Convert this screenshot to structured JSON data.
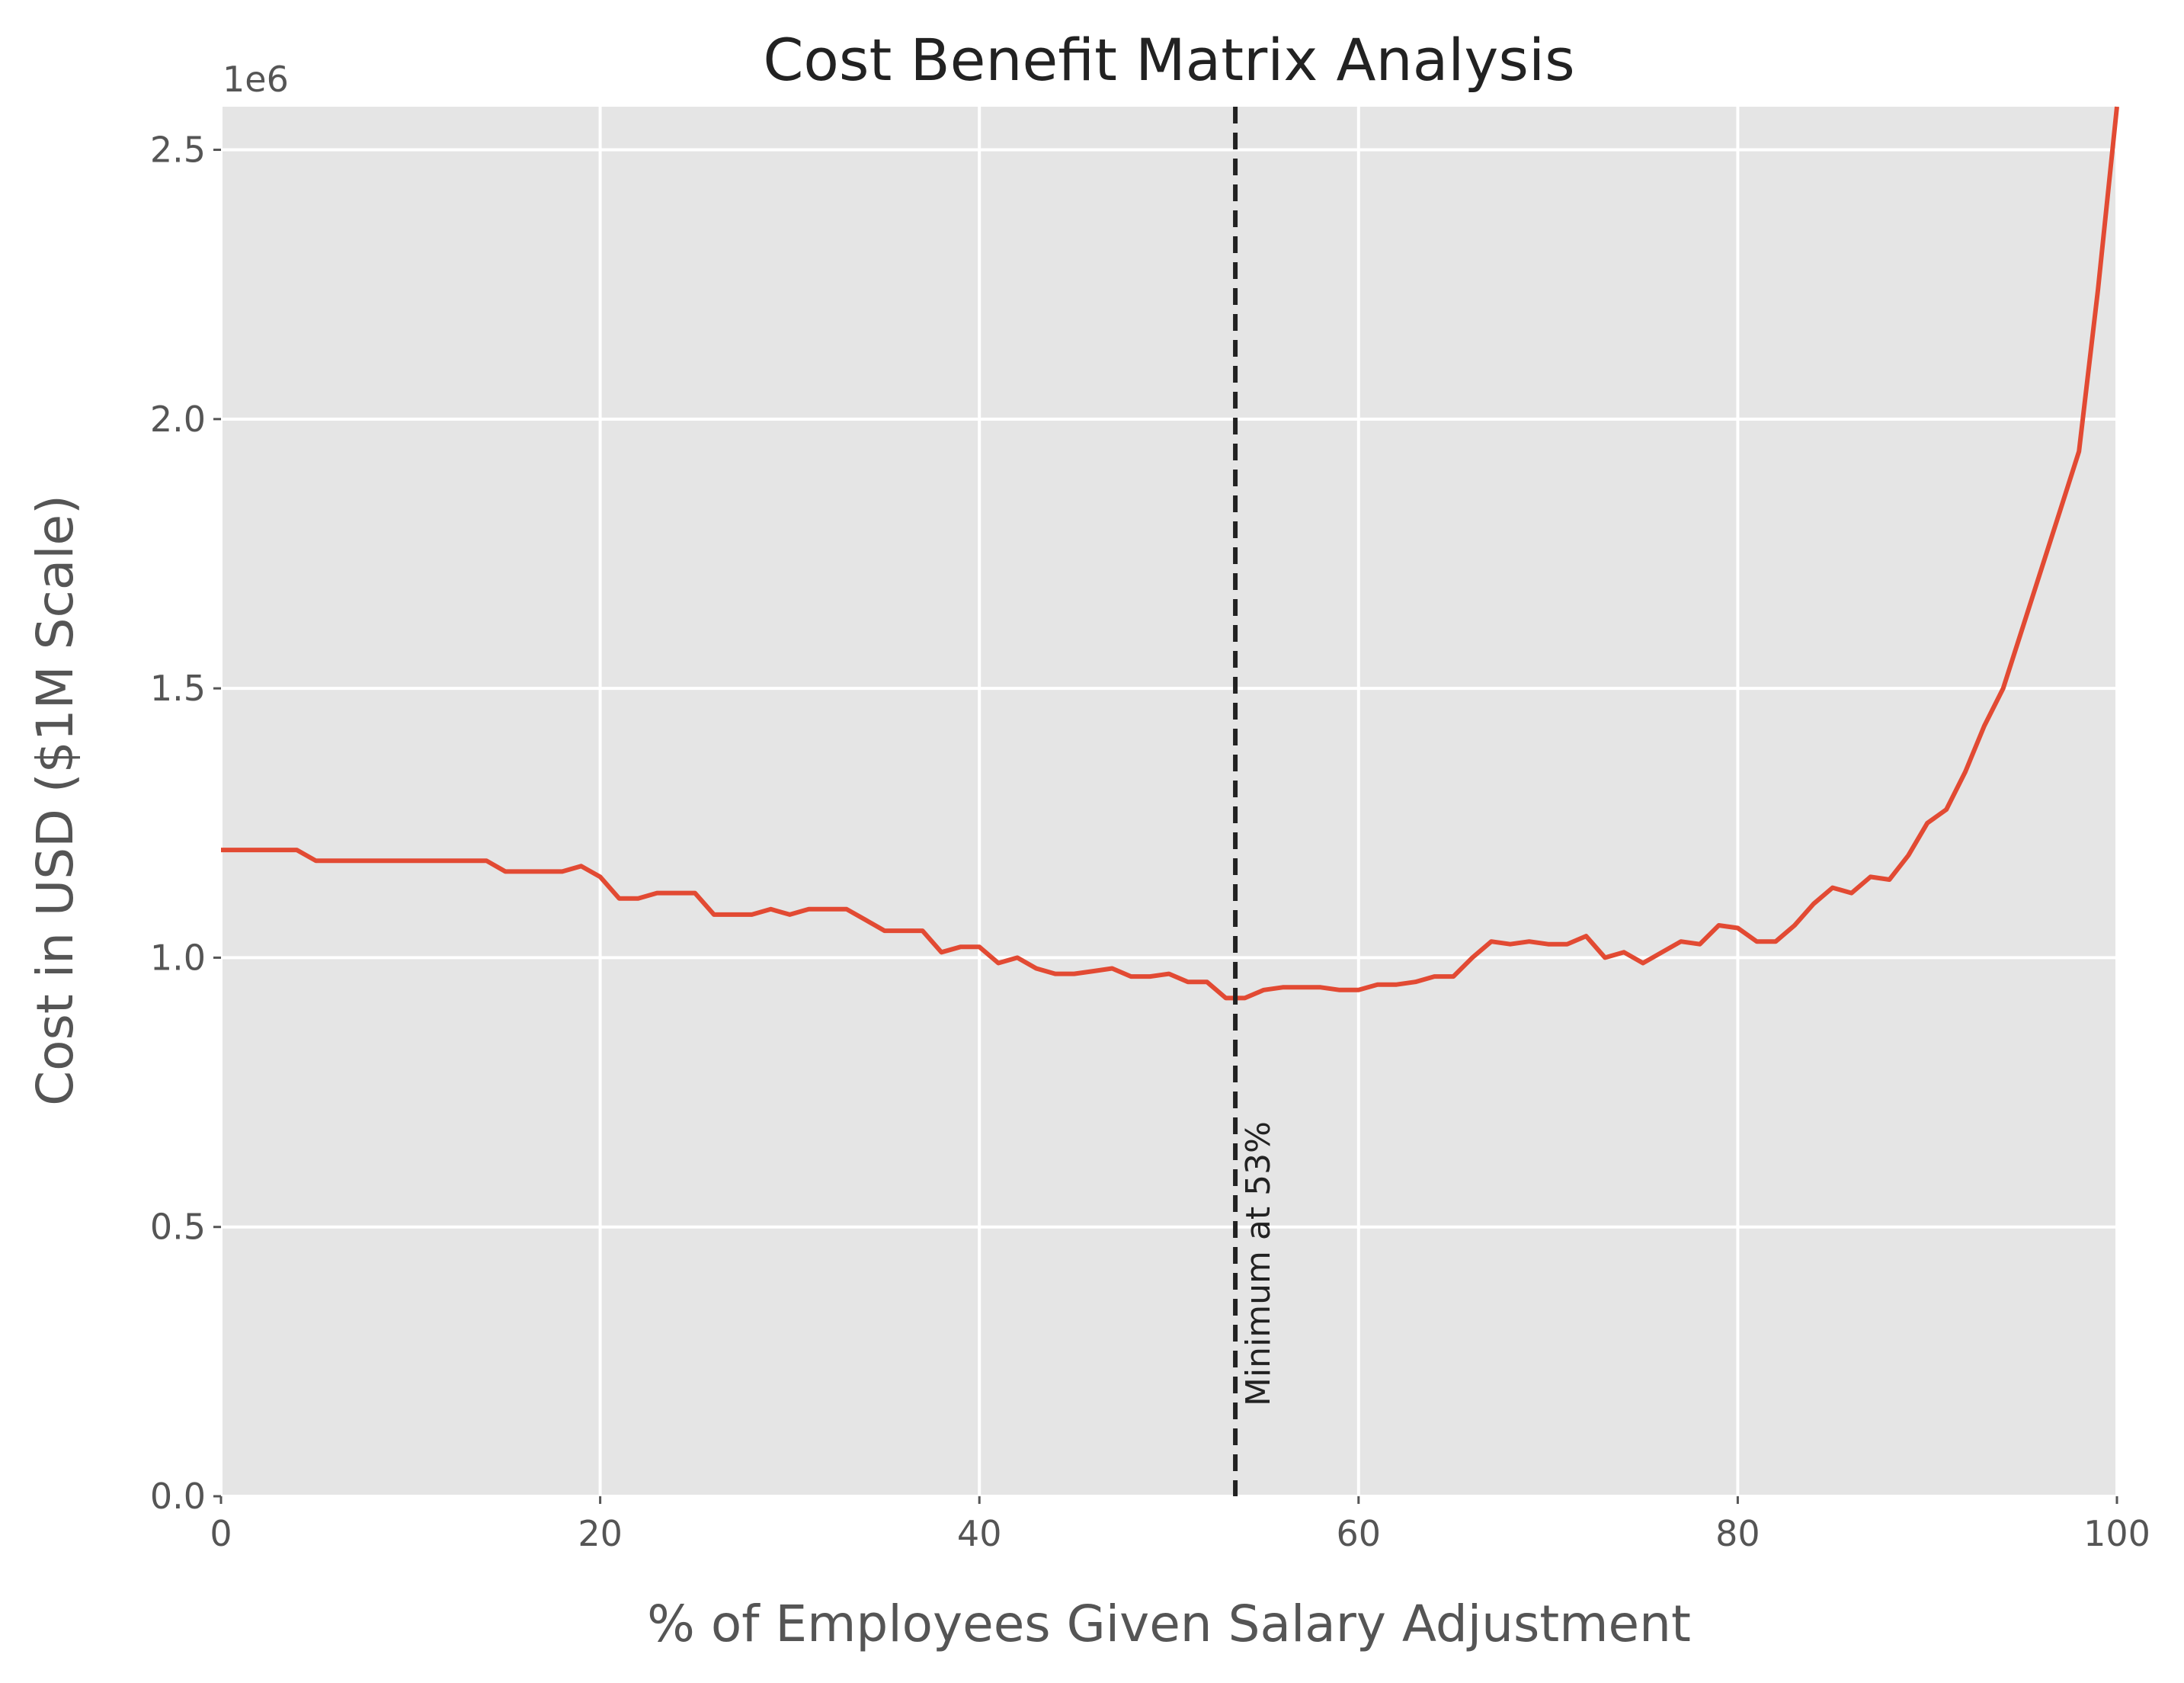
{
  "chart_data": {
    "type": "line",
    "title": "Cost Benefit Matrix Analysis",
    "xlabel": "% of Employees Given Salary Adjustment",
    "ylabel": "Cost in USD ($1M Scale)",
    "y_offset_label": "1e6",
    "xlim": [
      0,
      100
    ],
    "ylim": [
      0,
      2580000
    ],
    "x_ticks": [
      0,
      20,
      40,
      60,
      80,
      100
    ],
    "x_tick_labels": [
      "0",
      "20",
      "40",
      "60",
      "80",
      "100"
    ],
    "y_ticks": [
      0,
      500000,
      1000000,
      1500000,
      2000000,
      2500000
    ],
    "y_tick_labels": [
      "0.0",
      "0.5",
      "1.0",
      "1.5",
      "2.0",
      "2.5"
    ],
    "grid": true,
    "colors": {
      "background": "#e5e5e5",
      "grid": "#ffffff",
      "line": "#e24a33",
      "vline": "#222222"
    },
    "series": [
      {
        "x": [
          0,
          1,
          2,
          3,
          4,
          5,
          6,
          7,
          8,
          9,
          10,
          11,
          12,
          13,
          14,
          15,
          16,
          17,
          18,
          19,
          20,
          21,
          22,
          23,
          24,
          25,
          26,
          27,
          28,
          29,
          30,
          31,
          32,
          33,
          34,
          35,
          36,
          37,
          38,
          39,
          40,
          41,
          42,
          43,
          44,
          45,
          46,
          47,
          48,
          49,
          50,
          51,
          52,
          53,
          54,
          55,
          56,
          57,
          58,
          59,
          60,
          61,
          62,
          63,
          64,
          65,
          66,
          67,
          68,
          69,
          70,
          71,
          72,
          73,
          74,
          75,
          76,
          77,
          78,
          79,
          80,
          81,
          82,
          83,
          84,
          85,
          86,
          87,
          88,
          89,
          90,
          91,
          92,
          93,
          94,
          95,
          96,
          97,
          98,
          99,
          100
        ],
        "values": [
          1200000,
          1200000,
          1200000,
          1200000,
          1200000,
          1180000,
          1180000,
          1180000,
          1180000,
          1180000,
          1180000,
          1180000,
          1180000,
          1180000,
          1180000,
          1160000,
          1160000,
          1160000,
          1160000,
          1170000,
          1150000,
          1110000,
          1110000,
          1120000,
          1120000,
          1120000,
          1080000,
          1080000,
          1080000,
          1090000,
          1080000,
          1090000,
          1090000,
          1090000,
          1070000,
          1050000,
          1050000,
          1050000,
          1010000,
          1020000,
          1020000,
          990000,
          1000000,
          980000,
          970000,
          970000,
          975000,
          980000,
          965000,
          965000,
          970000,
          955000,
          955000,
          925000,
          925000,
          940000,
          945000,
          945000,
          945000,
          940000,
          940000,
          950000,
          950000,
          955000,
          965000,
          965000,
          1000000,
          1030000,
          1025000,
          1030000,
          1025000,
          1025000,
          1040000,
          1000000,
          1010000,
          990000,
          1010000,
          1030000,
          1025000,
          1060000,
          1055000,
          1030000,
          1030000,
          1060000,
          1100000,
          1130000,
          1120000,
          1150000,
          1145000,
          1190000,
          1250000,
          1275000,
          1345000,
          1430000,
          1500000,
          1610000,
          1720000,
          1830000,
          1940000,
          2240000,
          2580000
        ]
      }
    ],
    "vline": {
      "x": 53.5,
      "label": "Minimum at 53%",
      "style": "dashed"
    }
  }
}
